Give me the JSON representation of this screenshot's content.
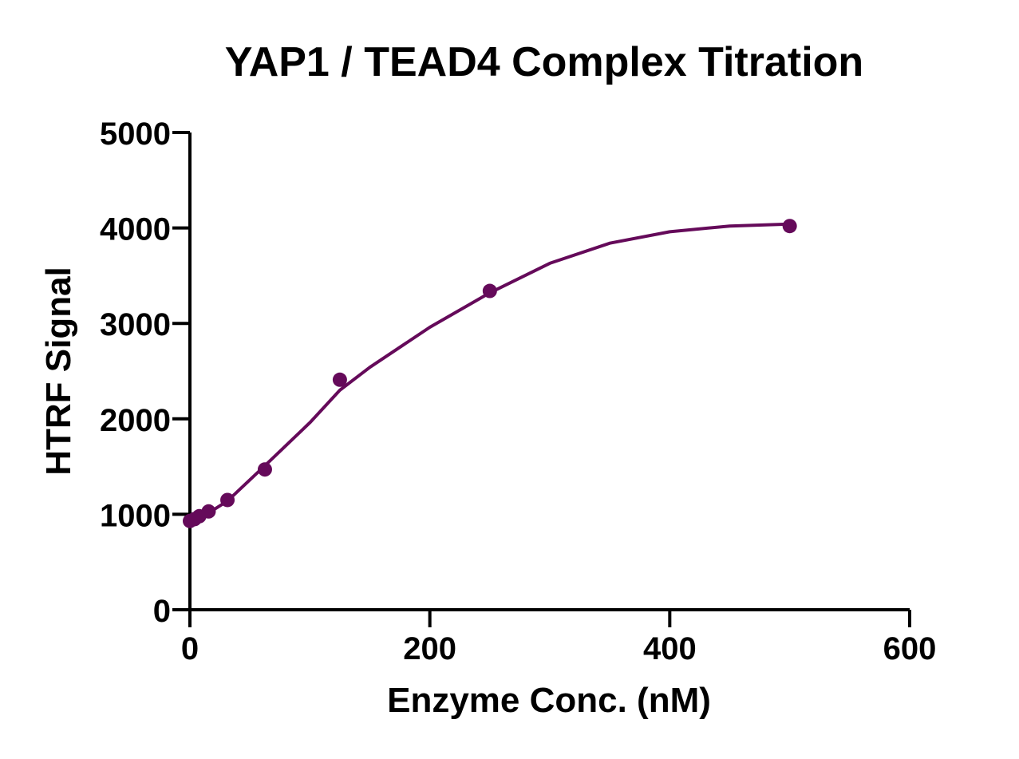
{
  "chart_data": {
    "type": "scatter",
    "title": "YAP1 / TEAD4 Complex Titration",
    "xlabel": "Enzyme Conc. (nM)",
    "ylabel": "HTRF Signal",
    "xlim": [
      0,
      600
    ],
    "ylim": [
      0,
      5000
    ],
    "x_ticks": [
      0,
      200,
      400,
      600
    ],
    "y_ticks": [
      0,
      1000,
      2000,
      3000,
      4000,
      5000
    ],
    "grid": false,
    "legend": "none",
    "colors": {
      "series": "#650a5a",
      "axis": "#000000"
    },
    "series": [
      {
        "x": [
          0,
          3.9,
          7.8,
          15.6,
          31.3,
          62.5,
          125,
          250,
          500
        ],
        "y": [
          930,
          950,
          980,
          1030,
          1150,
          1470,
          2410,
          3340,
          4020
        ]
      }
    ],
    "fit_curve": {
      "type": "quadratic",
      "x": [
        0,
        15,
        31.3,
        62.5,
        100,
        125,
        150,
        200,
        250,
        300,
        350,
        400,
        450,
        500
      ],
      "y": [
        880,
        1010,
        1140,
        1510,
        1960,
        2300,
        2540,
        2960,
        3320,
        3630,
        3840,
        3960,
        4020,
        4040
      ]
    }
  }
}
